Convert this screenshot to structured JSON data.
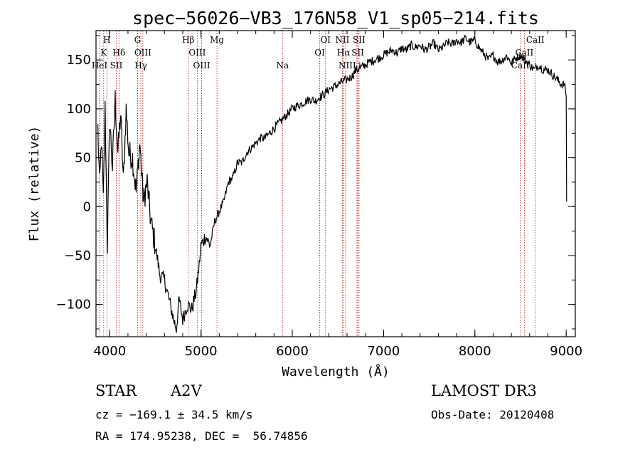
{
  "chart_data": {
    "type": "line",
    "title": "spec−56026−VB3_176N58_V1_sp05−214.fits",
    "xlabel": "Wavelength (Å)",
    "ylabel": "Flux (relative)",
    "xlim": [
      3850,
      9100
    ],
    "ylim": [
      -133,
      180
    ],
    "xticks": [
      {
        "value": 4000,
        "label": "4000"
      },
      {
        "value": 5000,
        "label": "5000"
      },
      {
        "value": 6000,
        "label": "6000"
      },
      {
        "value": 7000,
        "label": "7000"
      },
      {
        "value": 8000,
        "label": "8000"
      },
      {
        "value": 9000,
        "label": "9000"
      }
    ],
    "yticks": [
      {
        "value": -100,
        "label": "−100"
      },
      {
        "value": -50,
        "label": "−50"
      },
      {
        "value": 0,
        "label": "0"
      },
      {
        "value": 50,
        "label": "50"
      },
      {
        "value": 100,
        "label": "100"
      },
      {
        "value": 150,
        "label": "150"
      }
    ],
    "series": [
      {
        "name": "flux",
        "x": [
          3870,
          3890,
          3910,
          3930,
          3950,
          3975,
          4000,
          4030,
          4060,
          4090,
          4120,
          4150,
          4180,
          4210,
          4250,
          4290,
          4330,
          4370,
          4410,
          4450,
          4500,
          4550,
          4600,
          4650,
          4700,
          4730,
          4760,
          4800,
          4850,
          4900,
          4950,
          4980,
          5000,
          5050,
          5100,
          5150,
          5200,
          5250,
          5300,
          5350,
          5400,
          5450,
          5500,
          5550,
          5600,
          5650,
          5700,
          5750,
          5800,
          5850,
          5900,
          5950,
          6000,
          6050,
          6100,
          6150,
          6200,
          6250,
          6300,
          6350,
          6400,
          6450,
          6500,
          6550,
          6600,
          6650,
          6700,
          6750,
          6800,
          6850,
          6900,
          6950,
          7000,
          7050,
          7100,
          7150,
          7200,
          7250,
          7300,
          7350,
          7400,
          7450,
          7500,
          7550,
          7600,
          7650,
          7700,
          7750,
          7800,
          7850,
          7900,
          7950,
          8000,
          8050,
          8100,
          8150,
          8200,
          8250,
          8300,
          8350,
          8400,
          8450,
          8500,
          8550,
          8600,
          8650,
          8700,
          8750,
          8800,
          8850,
          8900,
          8950,
          8980,
          9000,
          9005
        ],
        "values": [
          80,
          20,
          70,
          5,
          100,
          -40,
          90,
          40,
          110,
          55,
          95,
          25,
          100,
          55,
          50,
          15,
          65,
          5,
          25,
          -15,
          -40,
          -70,
          -75,
          -95,
          -115,
          -125,
          -95,
          -115,
          -100,
          -105,
          -85,
          -60,
          -40,
          -30,
          -40,
          -15,
          -5,
          5,
          25,
          30,
          45,
          45,
          55,
          60,
          65,
          70,
          70,
          75,
          80,
          85,
          90,
          95,
          100,
          103,
          105,
          108,
          110,
          108,
          112,
          115,
          120,
          122,
          125,
          128,
          130,
          133,
          140,
          142,
          145,
          148,
          150,
          152,
          155,
          158,
          160,
          157,
          162,
          160,
          165,
          163,
          165,
          160,
          163,
          167,
          160,
          163,
          168,
          166,
          170,
          168,
          172,
          168,
          170,
          162,
          156,
          150,
          155,
          148,
          150,
          154,
          147,
          152,
          155,
          150,
          145,
          140,
          145,
          140,
          140,
          135,
          130,
          125,
          125,
          115,
          5
        ]
      }
    ],
    "spectral_lines": [
      {
        "label": "H",
        "x": 3969,
        "row": 0
      },
      {
        "label": "K",
        "x": 3934,
        "row": 1
      },
      {
        "label": "HeI",
        "x": 3889,
        "row": 2
      },
      {
        "label": "SII",
        "x": 4072,
        "row": 2
      },
      {
        "label": "Hδ",
        "x": 4102,
        "row": 1
      },
      {
        "label": "G",
        "x": 4305,
        "row": 0
      },
      {
        "label": "OIII",
        "x": 4363,
        "row": 1
      },
      {
        "label": "Hγ",
        "x": 4341,
        "row": 2
      },
      {
        "label": "Hβ",
        "x": 4861,
        "row": 0
      },
      {
        "label": "OIII",
        "x": 4959,
        "row": 1
      },
      {
        "label": "OIII",
        "x": 5007,
        "row": 2
      },
      {
        "label": "Mg",
        "x": 5175,
        "row": 0
      },
      {
        "label": "Na",
        "x": 5893,
        "row": 2
      },
      {
        "label": "OI",
        "x": 6300,
        "row": 1
      },
      {
        "label": "OI",
        "x": 6364,
        "row": 0
      },
      {
        "label": "NII",
        "x": 6548,
        "row": 0
      },
      {
        "label": "NII",
        "x": 6584,
        "row": 2
      },
      {
        "label": "Hα",
        "x": 6563,
        "row": 1
      },
      {
        "label": "SII",
        "x": 6717,
        "row": 1
      },
      {
        "label": "SII",
        "x": 6731,
        "row": 0
      },
      {
        "label": "Li",
        "x": 6708,
        "row": 2
      },
      {
        "label": "CaII",
        "x": 8498,
        "row": 2
      },
      {
        "label": "CaII",
        "x": 8542,
        "row": 1
      },
      {
        "label": "CaII",
        "x": 8662,
        "row": 0
      }
    ]
  },
  "info": {
    "object_type": "STAR",
    "subclass": "A2V",
    "survey": "LAMOST DR3",
    "velocity": "cz = −169.1 ± 34.5 km/s",
    "obs_date": "Obs-Date: 20120408",
    "coords": "RA = 174.95238, DEC =  56.74856"
  },
  "colors": {
    "spectrum": "#000000",
    "line_marker": "#c00000",
    "frame": "#000000",
    "background": "#ffffff"
  }
}
